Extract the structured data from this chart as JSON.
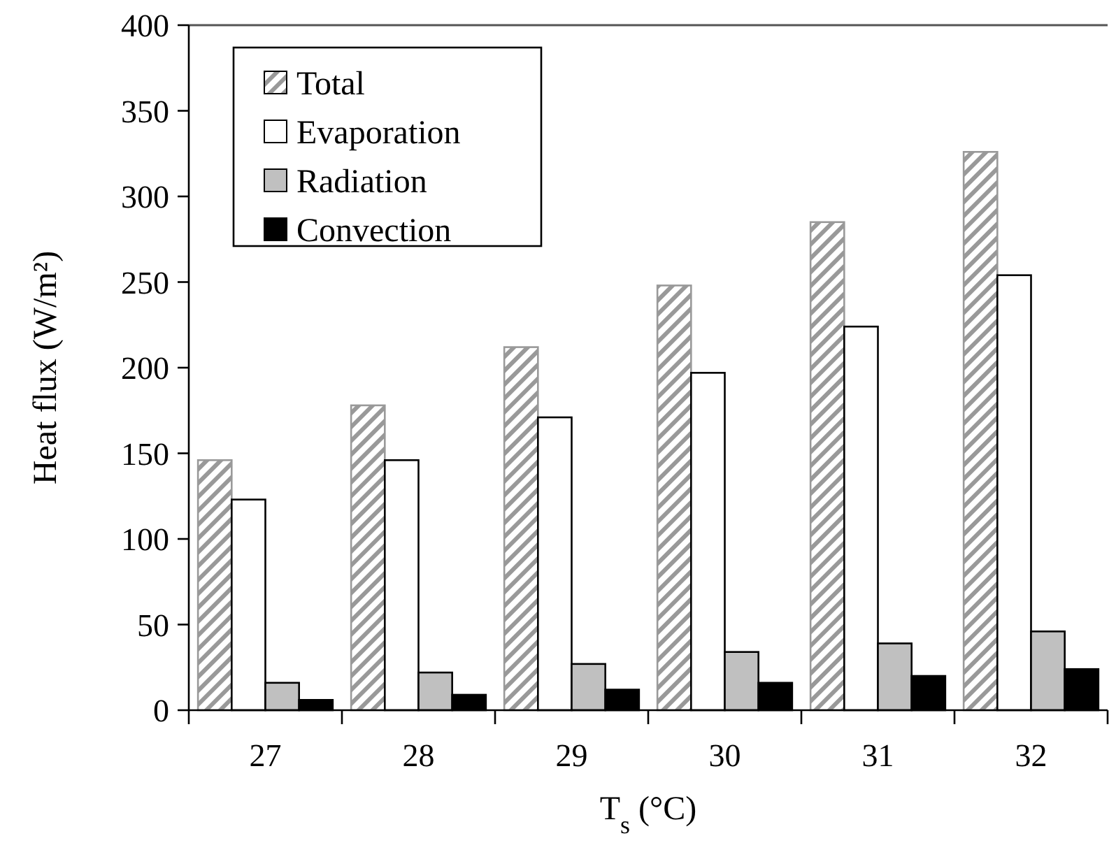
{
  "chart_data": {
    "type": "bar",
    "xlabel": "T$_{s}$ (°C)",
    "ylabel": "Heat flux (W/m²)",
    "categories": [
      "27",
      "28",
      "29",
      "30",
      "31",
      "32"
    ],
    "series": [
      {
        "name": "Total",
        "color": "#999999",
        "values": [
          146,
          178,
          212,
          248,
          285,
          326
        ]
      },
      {
        "name": "Evaporation",
        "color": "#ffffff",
        "values": [
          123,
          146,
          171,
          197,
          224,
          254
        ]
      },
      {
        "name": "Radiation",
        "color": "#c0c0c0",
        "values": [
          16,
          22,
          27,
          34,
          39,
          46
        ]
      },
      {
        "name": "Convection",
        "color": "#000000",
        "values": [
          6,
          9,
          12,
          16,
          20,
          24
        ]
      }
    ],
    "ylim": [
      0,
      400
    ],
    "yticks": [
      0,
      50,
      100,
      150,
      200,
      250,
      300,
      350,
      400
    ],
    "grid": false,
    "legend": "top left"
  }
}
